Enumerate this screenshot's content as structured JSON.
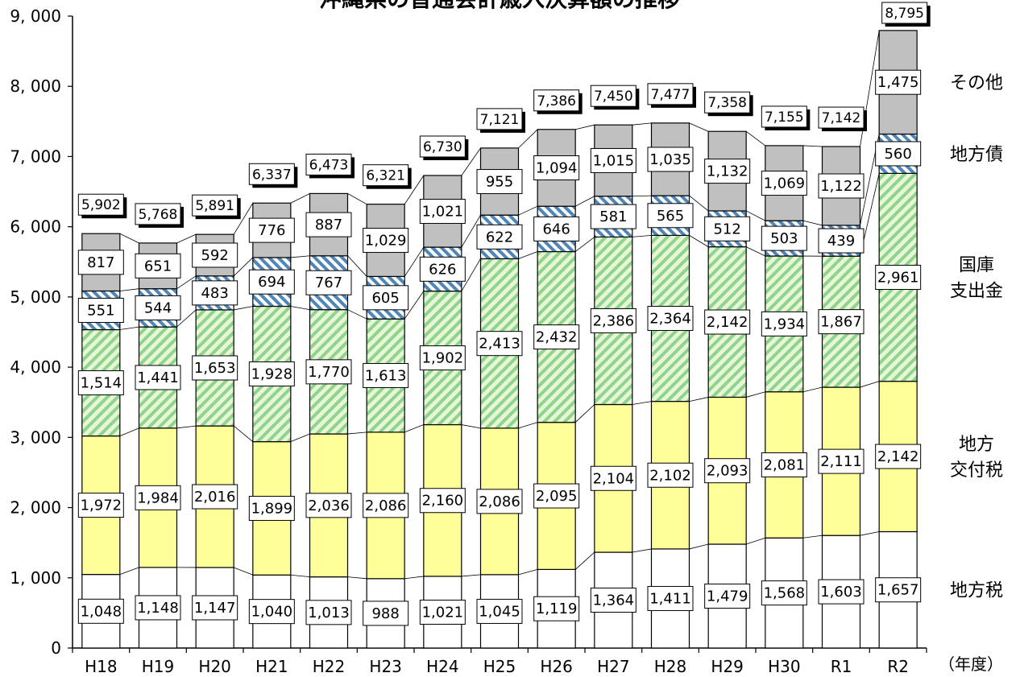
{
  "chart_data": {
    "type": "bar",
    "stacked": true,
    "title": "沖縄県の普通会計歳入決算額の推移",
    "x_unit": "（年度）",
    "ylim": [
      0,
      9000
    ],
    "y_ticks": [
      "0",
      "1, 000",
      "2, 000",
      "3, 000",
      "4, 000",
      "5, 000",
      "6, 000",
      "7, 000",
      "8, 000",
      "9, 000"
    ],
    "y_tick_values": [
      0,
      1000,
      2000,
      3000,
      4000,
      5000,
      6000,
      7000,
      8000,
      9000
    ],
    "categories": [
      "H18",
      "H19",
      "H20",
      "H21",
      "H22",
      "H23",
      "H24",
      "H25",
      "H26",
      "H27",
      "H28",
      "H29",
      "H30",
      "R1",
      "R2"
    ],
    "series": [
      {
        "name": "地方税",
        "legend": [
          "地方税"
        ],
        "color": "#ffffff",
        "pattern": "none",
        "values": [
          1048,
          1148,
          1147,
          1040,
          1013,
          988,
          1021,
          1045,
          1119,
          1364,
          1411,
          1479,
          1568,
          1603,
          1657
        ],
        "labels": [
          "1,048",
          "1,148",
          "1,147",
          "1,040",
          "1,013",
          "988",
          "1,021",
          "1,045",
          "1,119",
          "1,364",
          "1,411",
          "1,479",
          "1,568",
          "1,603",
          "1,657"
        ]
      },
      {
        "name": "地方交付税",
        "legend": [
          "地方",
          "交付税"
        ],
        "color": "#ffff99",
        "pattern": "none",
        "values": [
          1972,
          1984,
          2016,
          1899,
          2036,
          2086,
          2160,
          2086,
          2095,
          2104,
          2102,
          2093,
          2081,
          2111,
          2142
        ],
        "labels": [
          "1,972",
          "1,984",
          "2,016",
          "1,899",
          "2,036",
          "2,086",
          "2,160",
          "2,086",
          "2,095",
          "2,104",
          "2,102",
          "2,093",
          "2,081",
          "2,111",
          "2,142"
        ]
      },
      {
        "name": "国庫支出金",
        "legend": [
          "国庫",
          "支出金"
        ],
        "color": "#d9f2c6",
        "pattern": "green-diagonal",
        "values": [
          1514,
          1441,
          1653,
          1928,
          1770,
          1613,
          1902,
          2413,
          2432,
          2386,
          2364,
          2142,
          1934,
          1867,
          2961
        ],
        "labels": [
          "1,514",
          "1,441",
          "1,653",
          "1,928",
          "1,770",
          "1,613",
          "1,902",
          "2,413",
          "2,432",
          "2,386",
          "2,364",
          "2,142",
          "1,934",
          "1,867",
          "2,961"
        ]
      },
      {
        "name": "地方債",
        "legend": [
          "地方債"
        ],
        "color": "#cfe8f6",
        "pattern": "blue-diagonal",
        "values": [
          551,
          544,
          483,
          694,
          767,
          605,
          626,
          622,
          646,
          581,
          565,
          512,
          503,
          439,
          560
        ],
        "labels": [
          "551",
          "544",
          "483",
          "694",
          "767",
          "605",
          "626",
          "622",
          "646",
          "581",
          "565",
          "512",
          "503",
          "439",
          "560"
        ]
      },
      {
        "name": "その他",
        "legend": [
          "その他"
        ],
        "color": "#c0c0c0",
        "pattern": "none",
        "values": [
          817,
          651,
          592,
          776,
          887,
          1029,
          1021,
          955,
          1094,
          1015,
          1035,
          1132,
          1069,
          1122,
          1475
        ],
        "labels": [
          "817",
          "651",
          "592",
          "776",
          "887",
          "1,029",
          "1,021",
          "955",
          "1,094",
          "1,015",
          "1,035",
          "1,132",
          "1,069",
          "1,122",
          "1,475"
        ]
      }
    ],
    "totals": [
      5902,
      5768,
      5891,
      6337,
      6473,
      6321,
      6730,
      7121,
      7386,
      7450,
      7477,
      7358,
      7155,
      7142,
      8795
    ],
    "total_labels": [
      "5,902",
      "5,768",
      "5,891",
      "6,337",
      "6,473",
      "6,321",
      "6,730",
      "7,121",
      "7,386",
      "7,450",
      "7,477",
      "7,358",
      "7,155",
      "7,142",
      "8,795"
    ],
    "legend_placement": "right"
  }
}
